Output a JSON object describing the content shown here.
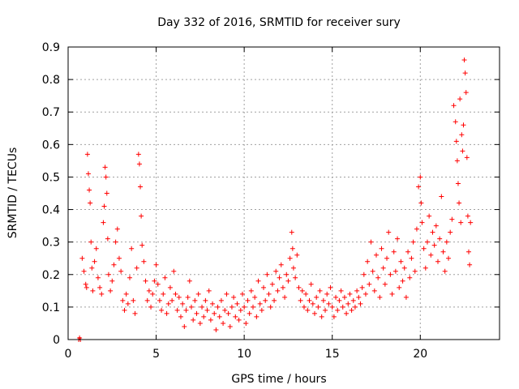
{
  "chart_data": {
    "type": "scatter",
    "title": "Day 332 of 2016, SRMTID for receiver sury",
    "xlabel": "GPS time / hours",
    "ylabel": "SRMTID / TECUs",
    "xlim": [
      0,
      24.5
    ],
    "ylim": [
      0,
      0.9
    ],
    "xticks": [
      0,
      5,
      10,
      15,
      20
    ],
    "yticks": [
      0,
      0.1,
      0.2,
      0.3,
      0.4,
      0.5,
      0.6,
      0.7,
      0.8,
      0.9
    ],
    "grid": true,
    "marker": "+",
    "series": [
      {
        "name": "SRMTID",
        "color": "#ff0000",
        "points": [
          [
            0.6,
            0.0
          ],
          [
            0.65,
            0.005
          ],
          [
            0.7,
            0.0
          ],
          [
            0.8,
            0.25
          ],
          [
            0.9,
            0.21
          ],
          [
            1.0,
            0.17
          ],
          [
            1.05,
            0.16
          ],
          [
            1.1,
            0.57
          ],
          [
            1.15,
            0.51
          ],
          [
            1.2,
            0.46
          ],
          [
            1.25,
            0.42
          ],
          [
            1.3,
            0.3
          ],
          [
            1.35,
            0.22
          ],
          [
            1.4,
            0.15
          ],
          [
            1.5,
            0.24
          ],
          [
            1.6,
            0.28
          ],
          [
            1.7,
            0.19
          ],
          [
            1.8,
            0.16
          ],
          [
            1.9,
            0.14
          ],
          [
            2.0,
            0.36
          ],
          [
            2.05,
            0.41
          ],
          [
            2.1,
            0.53
          ],
          [
            2.15,
            0.5
          ],
          [
            2.2,
            0.45
          ],
          [
            2.25,
            0.31
          ],
          [
            2.3,
            0.2
          ],
          [
            2.4,
            0.15
          ],
          [
            2.5,
            0.18
          ],
          [
            2.6,
            0.23
          ],
          [
            2.7,
            0.3
          ],
          [
            2.8,
            0.34
          ],
          [
            2.9,
            0.25
          ],
          [
            3.0,
            0.21
          ],
          [
            3.1,
            0.12
          ],
          [
            3.2,
            0.09
          ],
          [
            3.3,
            0.14
          ],
          [
            3.4,
            0.11
          ],
          [
            3.5,
            0.19
          ],
          [
            3.6,
            0.28
          ],
          [
            3.7,
            0.12
          ],
          [
            3.8,
            0.08
          ],
          [
            3.9,
            0.22
          ],
          [
            4.0,
            0.57
          ],
          [
            4.05,
            0.54
          ],
          [
            4.1,
            0.47
          ],
          [
            4.15,
            0.38
          ],
          [
            4.2,
            0.29
          ],
          [
            4.3,
            0.24
          ],
          [
            4.4,
            0.18
          ],
          [
            4.5,
            0.12
          ],
          [
            4.6,
            0.15
          ],
          [
            4.7,
            0.1
          ],
          [
            4.8,
            0.14
          ],
          [
            4.9,
            0.18
          ],
          [
            5.0,
            0.23
          ],
          [
            5.1,
            0.17
          ],
          [
            5.2,
            0.12
          ],
          [
            5.3,
            0.09
          ],
          [
            5.4,
            0.14
          ],
          [
            5.5,
            0.19
          ],
          [
            5.6,
            0.08
          ],
          [
            5.7,
            0.11
          ],
          [
            5.8,
            0.16
          ],
          [
            5.9,
            0.12
          ],
          [
            6.0,
            0.21
          ],
          [
            6.1,
            0.14
          ],
          [
            6.2,
            0.09
          ],
          [
            6.3,
            0.13
          ],
          [
            6.4,
            0.07
          ],
          [
            6.5,
            0.11
          ],
          [
            6.6,
            0.04
          ],
          [
            6.7,
            0.09
          ],
          [
            6.8,
            0.13
          ],
          [
            6.9,
            0.18
          ],
          [
            7.0,
            0.1
          ],
          [
            7.1,
            0.06
          ],
          [
            7.2,
            0.12
          ],
          [
            7.3,
            0.08
          ],
          [
            7.4,
            0.14
          ],
          [
            7.5,
            0.05
          ],
          [
            7.6,
            0.1
          ],
          [
            7.7,
            0.07
          ],
          [
            7.8,
            0.12
          ],
          [
            7.9,
            0.09
          ],
          [
            8.0,
            0.15
          ],
          [
            8.1,
            0.06
          ],
          [
            8.2,
            0.11
          ],
          [
            8.3,
            0.08
          ],
          [
            8.4,
            0.03
          ],
          [
            8.5,
            0.1
          ],
          [
            8.6,
            0.07
          ],
          [
            8.7,
            0.12
          ],
          [
            8.8,
            0.05
          ],
          [
            8.9,
            0.09
          ],
          [
            9.0,
            0.14
          ],
          [
            9.1,
            0.08
          ],
          [
            9.2,
            0.04
          ],
          [
            9.3,
            0.1
          ],
          [
            9.4,
            0.13
          ],
          [
            9.5,
            0.07
          ],
          [
            9.6,
            0.11
          ],
          [
            9.7,
            0.06
          ],
          [
            9.8,
            0.09
          ],
          [
            9.9,
            0.14
          ],
          [
            10.0,
            0.1
          ],
          [
            10.1,
            0.05
          ],
          [
            10.2,
            0.12
          ],
          [
            10.3,
            0.08
          ],
          [
            10.4,
            0.15
          ],
          [
            10.5,
            0.1
          ],
          [
            10.6,
            0.13
          ],
          [
            10.7,
            0.07
          ],
          [
            10.8,
            0.18
          ],
          [
            10.9,
            0.11
          ],
          [
            11.0,
            0.09
          ],
          [
            11.1,
            0.16
          ],
          [
            11.2,
            0.12
          ],
          [
            11.3,
            0.2
          ],
          [
            11.4,
            0.14
          ],
          [
            11.5,
            0.1
          ],
          [
            11.6,
            0.17
          ],
          [
            11.7,
            0.12
          ],
          [
            11.8,
            0.21
          ],
          [
            11.9,
            0.15
          ],
          [
            12.0,
            0.19
          ],
          [
            12.1,
            0.23
          ],
          [
            12.2,
            0.16
          ],
          [
            12.3,
            0.13
          ],
          [
            12.4,
            0.2
          ],
          [
            12.5,
            0.18
          ],
          [
            12.6,
            0.25
          ],
          [
            12.7,
            0.33
          ],
          [
            12.75,
            0.28
          ],
          [
            12.8,
            0.22
          ],
          [
            12.9,
            0.19
          ],
          [
            13.0,
            0.26
          ],
          [
            13.1,
            0.16
          ],
          [
            13.2,
            0.12
          ],
          [
            13.3,
            0.15
          ],
          [
            13.4,
            0.1
          ],
          [
            13.5,
            0.14
          ],
          [
            13.6,
            0.09
          ],
          [
            13.7,
            0.12
          ],
          [
            13.8,
            0.17
          ],
          [
            13.9,
            0.11
          ],
          [
            14.0,
            0.08
          ],
          [
            14.1,
            0.13
          ],
          [
            14.2,
            0.1
          ],
          [
            14.3,
            0.15
          ],
          [
            14.4,
            0.07
          ],
          [
            14.5,
            0.12
          ],
          [
            14.6,
            0.09
          ],
          [
            14.7,
            0.14
          ],
          [
            14.8,
            0.11
          ],
          [
            14.9,
            0.16
          ],
          [
            15.0,
            0.1
          ],
          [
            15.1,
            0.07
          ],
          [
            15.2,
            0.13
          ],
          [
            15.3,
            0.09
          ],
          [
            15.4,
            0.12
          ],
          [
            15.5,
            0.15
          ],
          [
            15.6,
            0.1
          ],
          [
            15.7,
            0.13
          ],
          [
            15.8,
            0.08
          ],
          [
            15.9,
            0.11
          ],
          [
            16.0,
            0.14
          ],
          [
            16.1,
            0.09
          ],
          [
            16.2,
            0.12
          ],
          [
            16.3,
            0.1
          ],
          [
            16.4,
            0.15
          ],
          [
            16.5,
            0.13
          ],
          [
            16.6,
            0.11
          ],
          [
            16.7,
            0.16
          ],
          [
            16.8,
            0.2
          ],
          [
            16.9,
            0.14
          ],
          [
            17.0,
            0.24
          ],
          [
            17.1,
            0.17
          ],
          [
            17.2,
            0.3
          ],
          [
            17.3,
            0.21
          ],
          [
            17.4,
            0.15
          ],
          [
            17.5,
            0.26
          ],
          [
            17.6,
            0.19
          ],
          [
            17.7,
            0.13
          ],
          [
            17.8,
            0.28
          ],
          [
            17.9,
            0.22
          ],
          [
            18.0,
            0.17
          ],
          [
            18.1,
            0.25
          ],
          [
            18.2,
            0.33
          ],
          [
            18.3,
            0.2
          ],
          [
            18.4,
            0.14
          ],
          [
            18.5,
            0.27
          ],
          [
            18.6,
            0.21
          ],
          [
            18.7,
            0.31
          ],
          [
            18.8,
            0.16
          ],
          [
            18.9,
            0.24
          ],
          [
            19.0,
            0.18
          ],
          [
            19.1,
            0.22
          ],
          [
            19.2,
            0.13
          ],
          [
            19.3,
            0.27
          ],
          [
            19.4,
            0.19
          ],
          [
            19.5,
            0.25
          ],
          [
            19.6,
            0.3
          ],
          [
            19.7,
            0.21
          ],
          [
            19.8,
            0.34
          ],
          [
            19.9,
            0.47
          ],
          [
            20.0,
            0.5
          ],
          [
            20.05,
            0.42
          ],
          [
            20.1,
            0.36
          ],
          [
            20.2,
            0.28
          ],
          [
            20.3,
            0.22
          ],
          [
            20.4,
            0.3
          ],
          [
            20.5,
            0.38
          ],
          [
            20.6,
            0.26
          ],
          [
            20.7,
            0.33
          ],
          [
            20.8,
            0.29
          ],
          [
            20.9,
            0.35
          ],
          [
            21.0,
            0.24
          ],
          [
            21.1,
            0.31
          ],
          [
            21.2,
            0.44
          ],
          [
            21.3,
            0.27
          ],
          [
            21.4,
            0.21
          ],
          [
            21.5,
            0.3
          ],
          [
            21.6,
            0.25
          ],
          [
            21.7,
            0.33
          ],
          [
            21.8,
            0.37
          ],
          [
            21.9,
            0.72
          ],
          [
            22.0,
            0.67
          ],
          [
            22.05,
            0.61
          ],
          [
            22.1,
            0.55
          ],
          [
            22.15,
            0.48
          ],
          [
            22.2,
            0.42
          ],
          [
            22.25,
            0.74
          ],
          [
            22.3,
            0.36
          ],
          [
            22.35,
            0.63
          ],
          [
            22.4,
            0.58
          ],
          [
            22.45,
            0.66
          ],
          [
            22.5,
            0.86
          ],
          [
            22.55,
            0.82
          ],
          [
            22.6,
            0.76
          ],
          [
            22.65,
            0.56
          ],
          [
            22.7,
            0.38
          ],
          [
            22.75,
            0.27
          ],
          [
            22.8,
            0.23
          ],
          [
            22.85,
            0.36
          ]
        ]
      }
    ]
  }
}
